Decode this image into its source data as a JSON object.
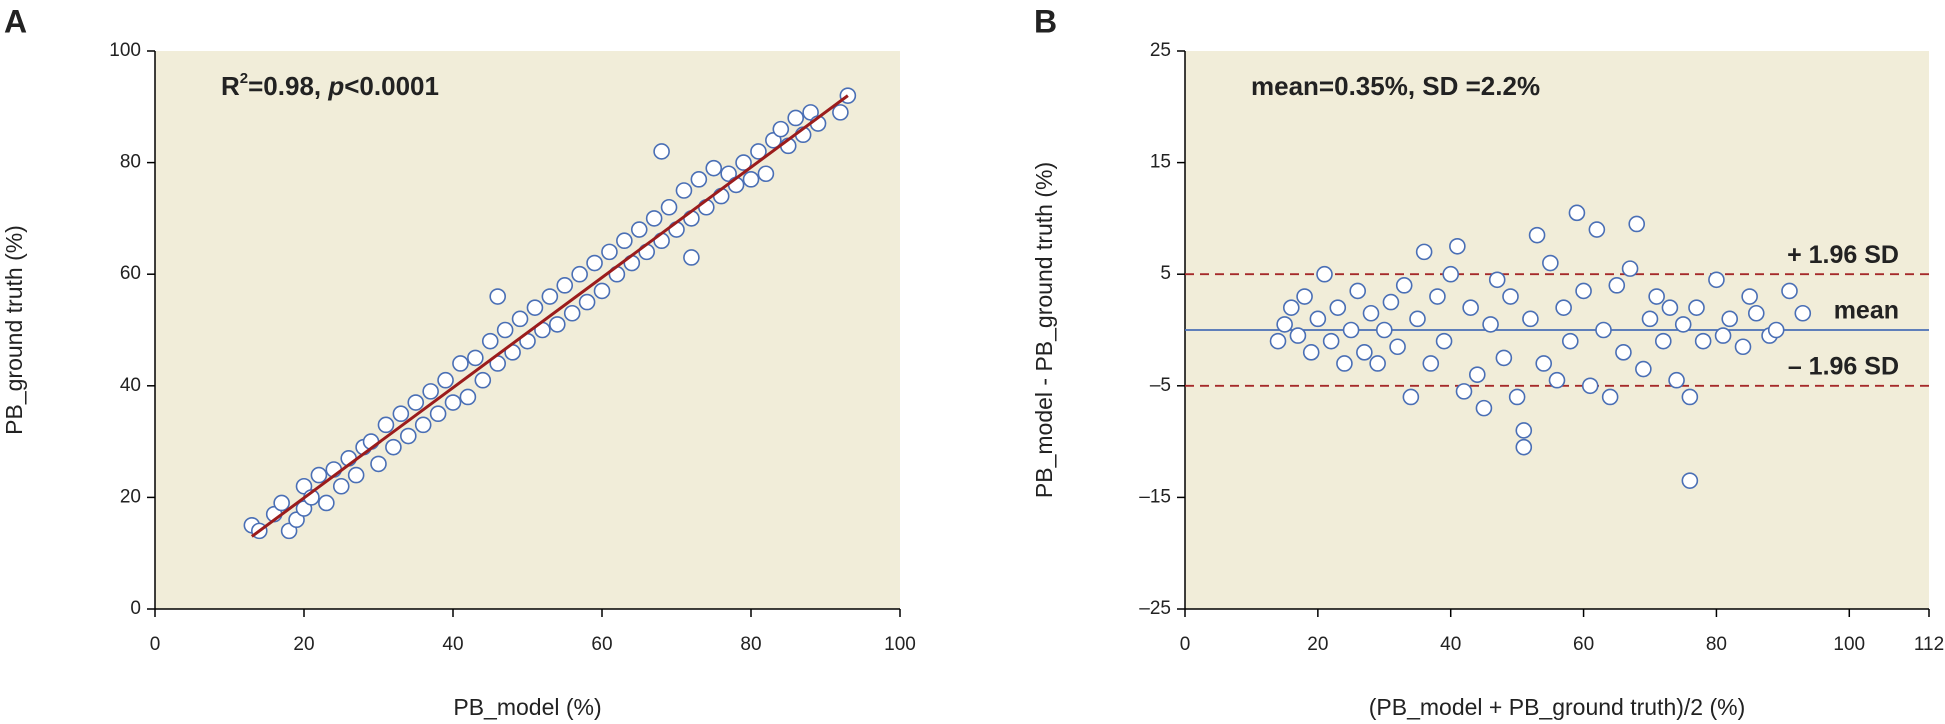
{
  "chart_data": [
    {
      "type": "scatter",
      "panel_label": "A",
      "annotation_parts": [
        "R",
        "2",
        "=0.98, ",
        "p",
        "<0.0001"
      ],
      "x_label": "PB_model (%)",
      "y_label": "PB_ground truth (%)",
      "xlim": [
        0,
        100
      ],
      "ylim": [
        0,
        100
      ],
      "xticks": [
        0,
        20,
        40,
        60,
        80,
        100
      ],
      "yticks": [
        0,
        20,
        40,
        60,
        80,
        100
      ],
      "color": "#4a6fb5",
      "background": "#f1edd9",
      "x": [
        13,
        14,
        16,
        17,
        18,
        19,
        20,
        20,
        21,
        22,
        23,
        24,
        25,
        26,
        27,
        28,
        29,
        30,
        31,
        32,
        33,
        34,
        35,
        36,
        37,
        38,
        39,
        40,
        41,
        42,
        43,
        44,
        45,
        46,
        46,
        47,
        48,
        49,
        50,
        51,
        52,
        53,
        54,
        55,
        56,
        57,
        58,
        59,
        60,
        61,
        62,
        63,
        64,
        65,
        66,
        67,
        68,
        68,
        69,
        70,
        71,
        72,
        72,
        73,
        74,
        75,
        76,
        77,
        78,
        79,
        80,
        81,
        82,
        83,
        84,
        85,
        86,
        87,
        88,
        89,
        92,
        93
      ],
      "values": [
        15,
        14,
        17,
        19,
        14,
        16,
        18,
        22,
        20,
        24,
        19,
        25,
        22,
        27,
        24,
        29,
        30,
        26,
        33,
        29,
        35,
        31,
        37,
        33,
        39,
        35,
        41,
        37,
        44,
        38,
        45,
        41,
        48,
        56,
        44,
        50,
        46,
        52,
        48,
        54,
        50,
        56,
        51,
        58,
        53,
        60,
        55,
        62,
        57,
        64,
        60,
        66,
        62,
        68,
        64,
        70,
        82,
        66,
        72,
        68,
        75,
        63,
        70,
        77,
        72,
        79,
        74,
        78,
        76,
        80,
        77,
        82,
        78,
        84,
        86,
        83,
        88,
        85,
        89,
        87,
        89,
        92
      ],
      "fit_line": {
        "x": [
          13,
          93
        ],
        "y": [
          13,
          92
        ],
        "color": "#9b1c1c"
      }
    },
    {
      "type": "scatter",
      "panel_label": "B",
      "annotation_parts": [
        "mean=0.35%, SD =2.2%"
      ],
      "x_label": "(PB_model + PB_ground truth)/2 (%)",
      "y_label": "PB_model - PB_ground truth (%)",
      "xlim": [
        0,
        112
      ],
      "ylim": [
        -25,
        25
      ],
      "xticks": [
        0,
        20,
        40,
        60,
        80,
        100,
        112
      ],
      "yticks": [
        {
          "value": -25,
          "label": "–25"
        },
        {
          "value": -15,
          "label": "–15"
        },
        {
          "value": -5,
          "label": "–5"
        },
        5,
        15,
        25
      ],
      "color": "#4a6fb5",
      "background": "#f1edd9",
      "x": [
        14,
        15,
        16,
        17,
        18,
        19,
        20,
        21,
        22,
        23,
        24,
        25,
        26,
        27,
        28,
        29,
        30,
        31,
        32,
        33,
        34,
        35,
        36,
        37,
        38,
        39,
        40,
        41,
        42,
        43,
        44,
        45,
        46,
        47,
        48,
        49,
        50,
        51,
        51,
        52,
        53,
        54,
        55,
        56,
        57,
        58,
        59,
        60,
        61,
        62,
        63,
        64,
        65,
        66,
        67,
        68,
        69,
        70,
        71,
        72,
        73,
        74,
        75,
        76,
        76,
        77,
        78,
        80,
        81,
        82,
        84,
        85,
        86,
        88,
        89,
        91,
        93
      ],
      "values": [
        -1,
        0.5,
        2,
        -0.5,
        3,
        -2,
        1,
        5,
        -1,
        2,
        -3,
        0,
        3.5,
        -2,
        1.5,
        -3,
        0,
        2.5,
        -1.5,
        4,
        -6,
        1,
        7,
        -3,
        3,
        -1,
        5,
        7.5,
        -5.5,
        2,
        -4,
        -7,
        0.5,
        4.5,
        -2.5,
        3,
        -6,
        -9,
        -10.5,
        1,
        8.5,
        -3,
        6,
        -4.5,
        2,
        -1,
        10.5,
        3.5,
        -5,
        9,
        0,
        -6,
        4,
        -2,
        5.5,
        9.5,
        -3.5,
        1,
        3,
        -1,
        2,
        -4.5,
        0.5,
        -13.5,
        -6,
        2,
        -1,
        4.5,
        -0.5,
        1,
        -1.5,
        3,
        1.5,
        -0.5,
        0,
        3.5,
        1.5
      ],
      "ref_lines": [
        {
          "label": "+ 1.96 SD",
          "value": 5,
          "dashed": true,
          "color": "#a52a2a"
        },
        {
          "label": "mean",
          "value": 0,
          "dashed": false,
          "color": "#4a6fb5"
        },
        {
          "label": "– 1.96 SD",
          "value": -5,
          "dashed": true,
          "color": "#a52a2a"
        }
      ]
    }
  ]
}
